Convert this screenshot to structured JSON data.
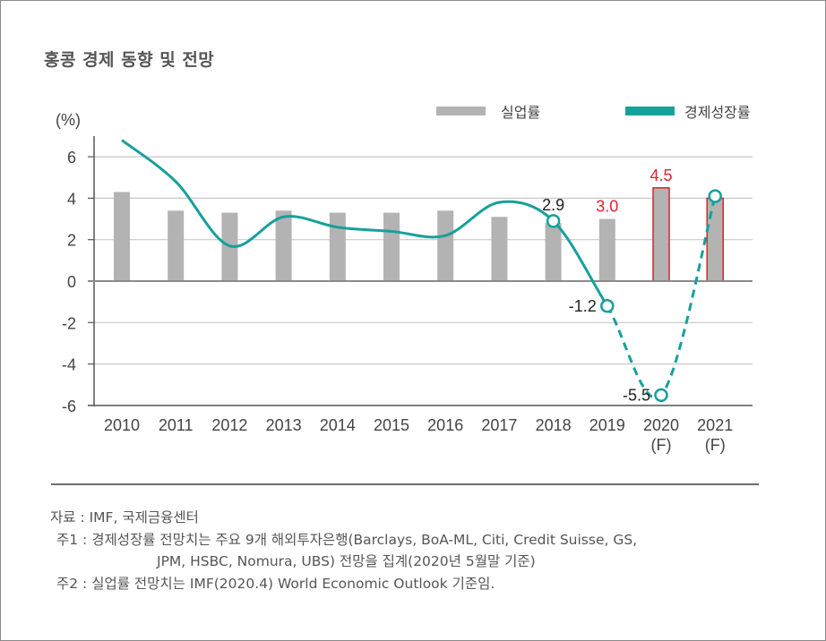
{
  "title": "홍콩 경제 동향 및 전망",
  "chart_data": {
    "type": "bar",
    "title": "홍콩 경제 동향 및 전망",
    "ylabel": "(%)",
    "xlabel": "",
    "ylim": [
      -6,
      7
    ],
    "yticks": [
      6,
      4,
      2,
      0,
      -2,
      -4,
      -6
    ],
    "ytick_labels": [
      "6",
      "4",
      "2",
      "0",
      "-2",
      "-4",
      "-6"
    ],
    "grid": true,
    "legend_position": "top-right",
    "categories": [
      "2010",
      "2011",
      "2012",
      "2013",
      "2014",
      "2015",
      "2016",
      "2017",
      "2018",
      "2019",
      "2020",
      "2021"
    ],
    "category_sublabels": [
      "",
      "",
      "",
      "",
      "",
      "",
      "",
      "",
      "",
      "",
      "(F)",
      "(F)"
    ],
    "series": [
      {
        "name": "실업률",
        "type": "bar",
        "color": "#b3b3b3",
        "values": [
          4.3,
          3.4,
          3.3,
          3.4,
          3.3,
          3.3,
          3.4,
          3.1,
          2.8,
          3.0,
          4.5,
          4.0
        ],
        "forecast_outline_color": "#d9232e",
        "forecast_from_index": 10
      },
      {
        "name": "경제성장률",
        "type": "line",
        "color": "#16a09b",
        "values": [
          6.8,
          4.8,
          1.7,
          3.1,
          2.6,
          2.4,
          2.2,
          3.8,
          2.9,
          -1.2,
          -5.5,
          4.1
        ],
        "dashed_from_index": 9,
        "markers_at_indices": [
          8,
          9,
          10,
          11
        ]
      }
    ],
    "annotations": [
      {
        "text": "2.9",
        "category": "2018",
        "series": "경제성장률",
        "color": "#222222"
      },
      {
        "text": "-1.2",
        "category": "2019",
        "series": "경제성장률",
        "color": "#222222"
      },
      {
        "text": "-5.5",
        "category": "2020",
        "series": "경제성장률",
        "color": "#222222"
      },
      {
        "text": "3.0",
        "category": "2019",
        "series": "실업률",
        "color": "#d9232e"
      },
      {
        "text": "4.5",
        "category": "2020",
        "series": "실업률",
        "color": "#d9232e"
      }
    ]
  },
  "legend": {
    "items": [
      {
        "label": "실업률",
        "color": "#b3b3b3"
      },
      {
        "label": "경제성장률",
        "color": "#16a09b"
      }
    ]
  },
  "notes": {
    "source": "자료 : IMF, 국제금융센터",
    "note1_line1": "주1 : 경제성장률 전망치는 주요 9개 해외투자은행(Barclays, BoA-ML, Citi, Credit Suisse, GS,",
    "note1_line2": "JPM, HSBC, Nomura, UBS) 전망을 집계(2020년 5월말 기준)",
    "note2": "주2 : 실업률 전망치는 IMF(2020.4) World Economic Outlook 기준임."
  }
}
